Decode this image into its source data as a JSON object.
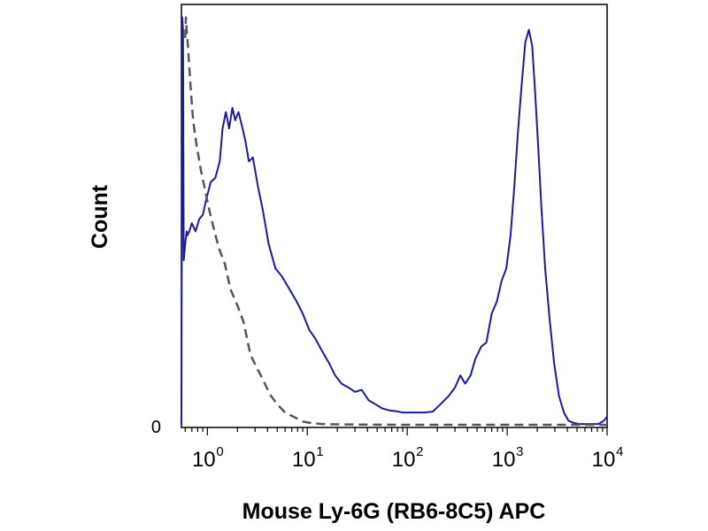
{
  "chart_data": {
    "type": "area",
    "xlabel": "Mouse Ly-6G (RB6-8C5) APC",
    "ylabel": "Count",
    "x_scale": "log",
    "xlim": [
      0.55,
      10000
    ],
    "ylim": [
      0,
      1.0
    ],
    "grid": false,
    "legend": "none",
    "y_tick_labels": [
      "0"
    ],
    "x_ticks": [
      {
        "base": "10",
        "exp": "0",
        "value": 1
      },
      {
        "base": "10",
        "exp": "1",
        "value": 10
      },
      {
        "base": "10",
        "exp": "2",
        "value": 100
      },
      {
        "base": "10",
        "exp": "3",
        "value": 1000
      },
      {
        "base": "10",
        "exp": "4",
        "value": 10000
      }
    ],
    "series": [
      {
        "color": "#1a1a9e",
        "style": "solid",
        "x": [
          0.55,
          0.56,
          0.57,
          0.58,
          0.6,
          0.62,
          0.63,
          0.66,
          0.7,
          0.76,
          0.83,
          0.9,
          0.98,
          1.08,
          1.2,
          1.33,
          1.42,
          1.53,
          1.65,
          1.78,
          1.9,
          2.05,
          2.2,
          2.4,
          2.6,
          2.85,
          3.2,
          3.6,
          4.1,
          4.8,
          5.6,
          6.6,
          7.8,
          9,
          10.5,
          12,
          14,
          16.5,
          19,
          22,
          26,
          30,
          35,
          41,
          48,
          56,
          66,
          78,
          90,
          105,
          125,
          150,
          180,
          215,
          260,
          300,
          340,
          380,
          430,
          480,
          550,
          620,
          700,
          790,
          880,
          980,
          1080,
          1180,
          1280,
          1400,
          1520,
          1650,
          1780,
          1900,
          2050,
          2200,
          2400,
          2650,
          2950,
          3300,
          3700,
          4100,
          4600,
          5200,
          6000,
          7000,
          8200,
          9300,
          10000
        ],
        "y": [
          0,
          0.99,
          0.96,
          0.4,
          0.44,
          0.47,
          0.46,
          0.47,
          0.49,
          0.47,
          0.5,
          0.51,
          0.55,
          0.59,
          0.6,
          0.64,
          0.72,
          0.76,
          0.72,
          0.77,
          0.74,
          0.76,
          0.73,
          0.69,
          0.64,
          0.65,
          0.58,
          0.52,
          0.44,
          0.38,
          0.36,
          0.33,
          0.3,
          0.27,
          0.23,
          0.21,
          0.18,
          0.15,
          0.12,
          0.1,
          0.09,
          0.08,
          0.085,
          0.06,
          0.05,
          0.04,
          0.035,
          0.033,
          0.03,
          0.03,
          0.03,
          0.03,
          0.032,
          0.05,
          0.07,
          0.09,
          0.12,
          0.1,
          0.12,
          0.16,
          0.19,
          0.2,
          0.27,
          0.3,
          0.35,
          0.38,
          0.46,
          0.58,
          0.71,
          0.83,
          0.93,
          0.96,
          0.92,
          0.81,
          0.67,
          0.53,
          0.38,
          0.26,
          0.15,
          0.07,
          0.03,
          0.01,
          0.005,
          0.002,
          0.002,
          0.002,
          0.002,
          0.01,
          0.02
        ]
      },
      {
        "color": "#555555",
        "style": "dashed",
        "x": [
          0.6,
          0.61,
          0.62,
          0.64,
          0.68,
          0.72,
          0.78,
          0.86,
          0.95,
          1.05,
          1.15,
          1.3,
          1.5,
          1.7,
          2.0,
          2.3,
          2.7,
          3.1,
          3.6,
          4.2,
          5.0,
          6.0,
          7.5,
          9.0,
          11,
          14,
          20,
          40,
          100,
          1000,
          10000
        ],
        "y": [
          0.94,
          0.99,
          0.96,
          0.92,
          0.82,
          0.74,
          0.68,
          0.62,
          0.57,
          0.52,
          0.48,
          0.43,
          0.39,
          0.33,
          0.29,
          0.25,
          0.17,
          0.14,
          0.11,
          0.075,
          0.05,
          0.03,
          0.018,
          0.008,
          0.004,
          0.002,
          0.001,
          0.0005,
          0.0,
          0.0,
          0.0
        ]
      }
    ]
  }
}
